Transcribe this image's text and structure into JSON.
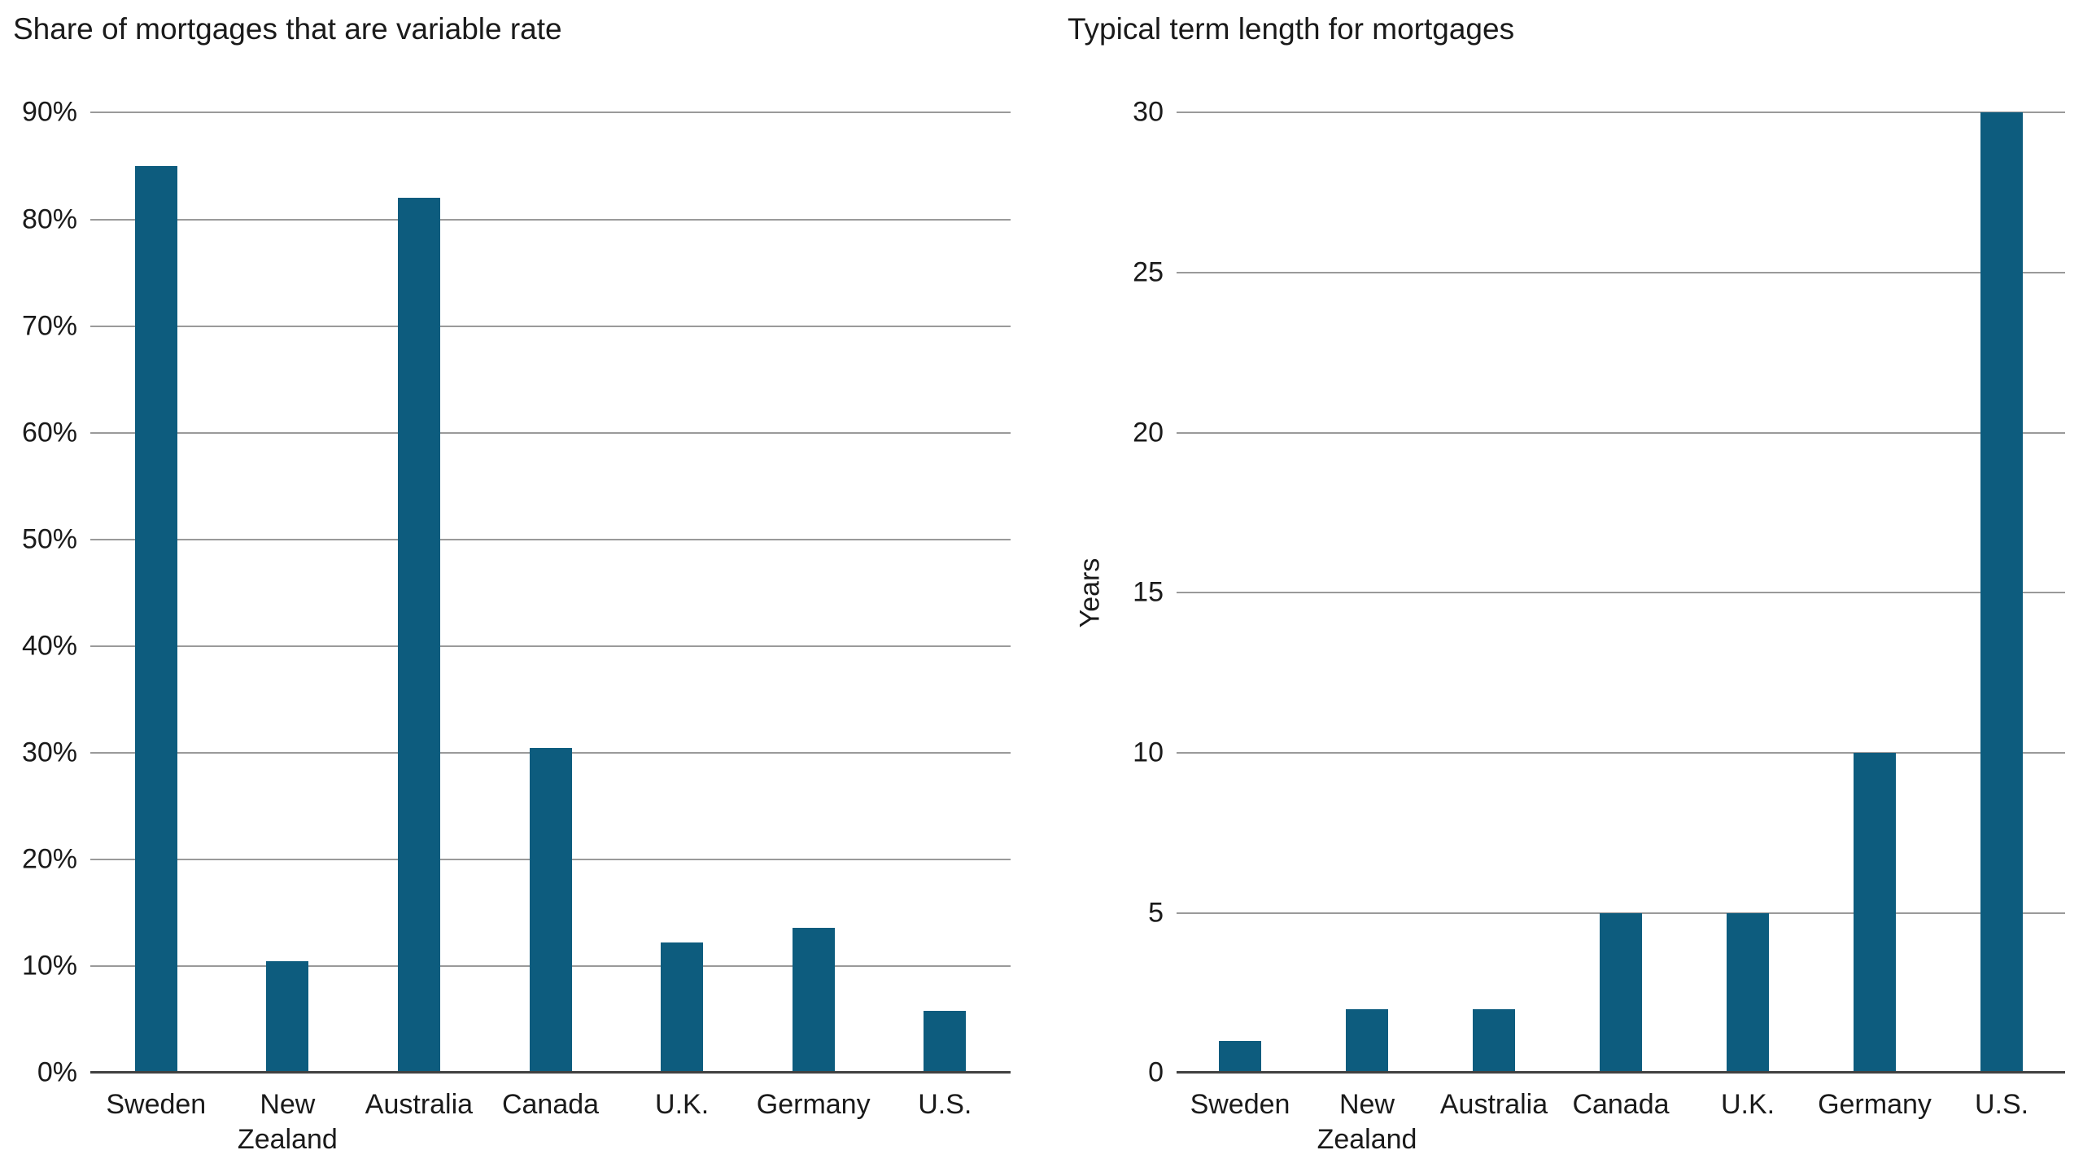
{
  "style": {
    "bar_color": "#0d5c7e",
    "gridline_color": "#9a9a9a",
    "baseline_color": "#404040",
    "text_color": "#1a1a1a",
    "background": "#ffffff"
  },
  "chart_data": [
    {
      "type": "bar",
      "title": "Share of mortgages that are variable rate",
      "categories": [
        "Sweden",
        "New Zealand",
        "Australia",
        "Canada",
        "U.K.",
        "Germany",
        "U.S."
      ],
      "values": [
        85,
        10.5,
        82,
        30.5,
        12.2,
        13.6,
        5.8
      ],
      "xlabel": "",
      "ylabel": "",
      "ylim": [
        0,
        90
      ],
      "ytick_step": 10,
      "ytick_suffix": "%",
      "grid": true,
      "legend": false
    },
    {
      "type": "bar",
      "title": "Typical term length for mortgages",
      "categories": [
        "Sweden",
        "New Zealand",
        "Australia",
        "Canada",
        "U.K.",
        "Germany",
        "U.S."
      ],
      "values": [
        1,
        2,
        2,
        5,
        5,
        10,
        30
      ],
      "xlabel": "",
      "ylabel": "Years",
      "ylim": [
        0,
        30
      ],
      "ytick_step": 5,
      "ytick_suffix": "",
      "grid": true,
      "legend": false
    }
  ]
}
